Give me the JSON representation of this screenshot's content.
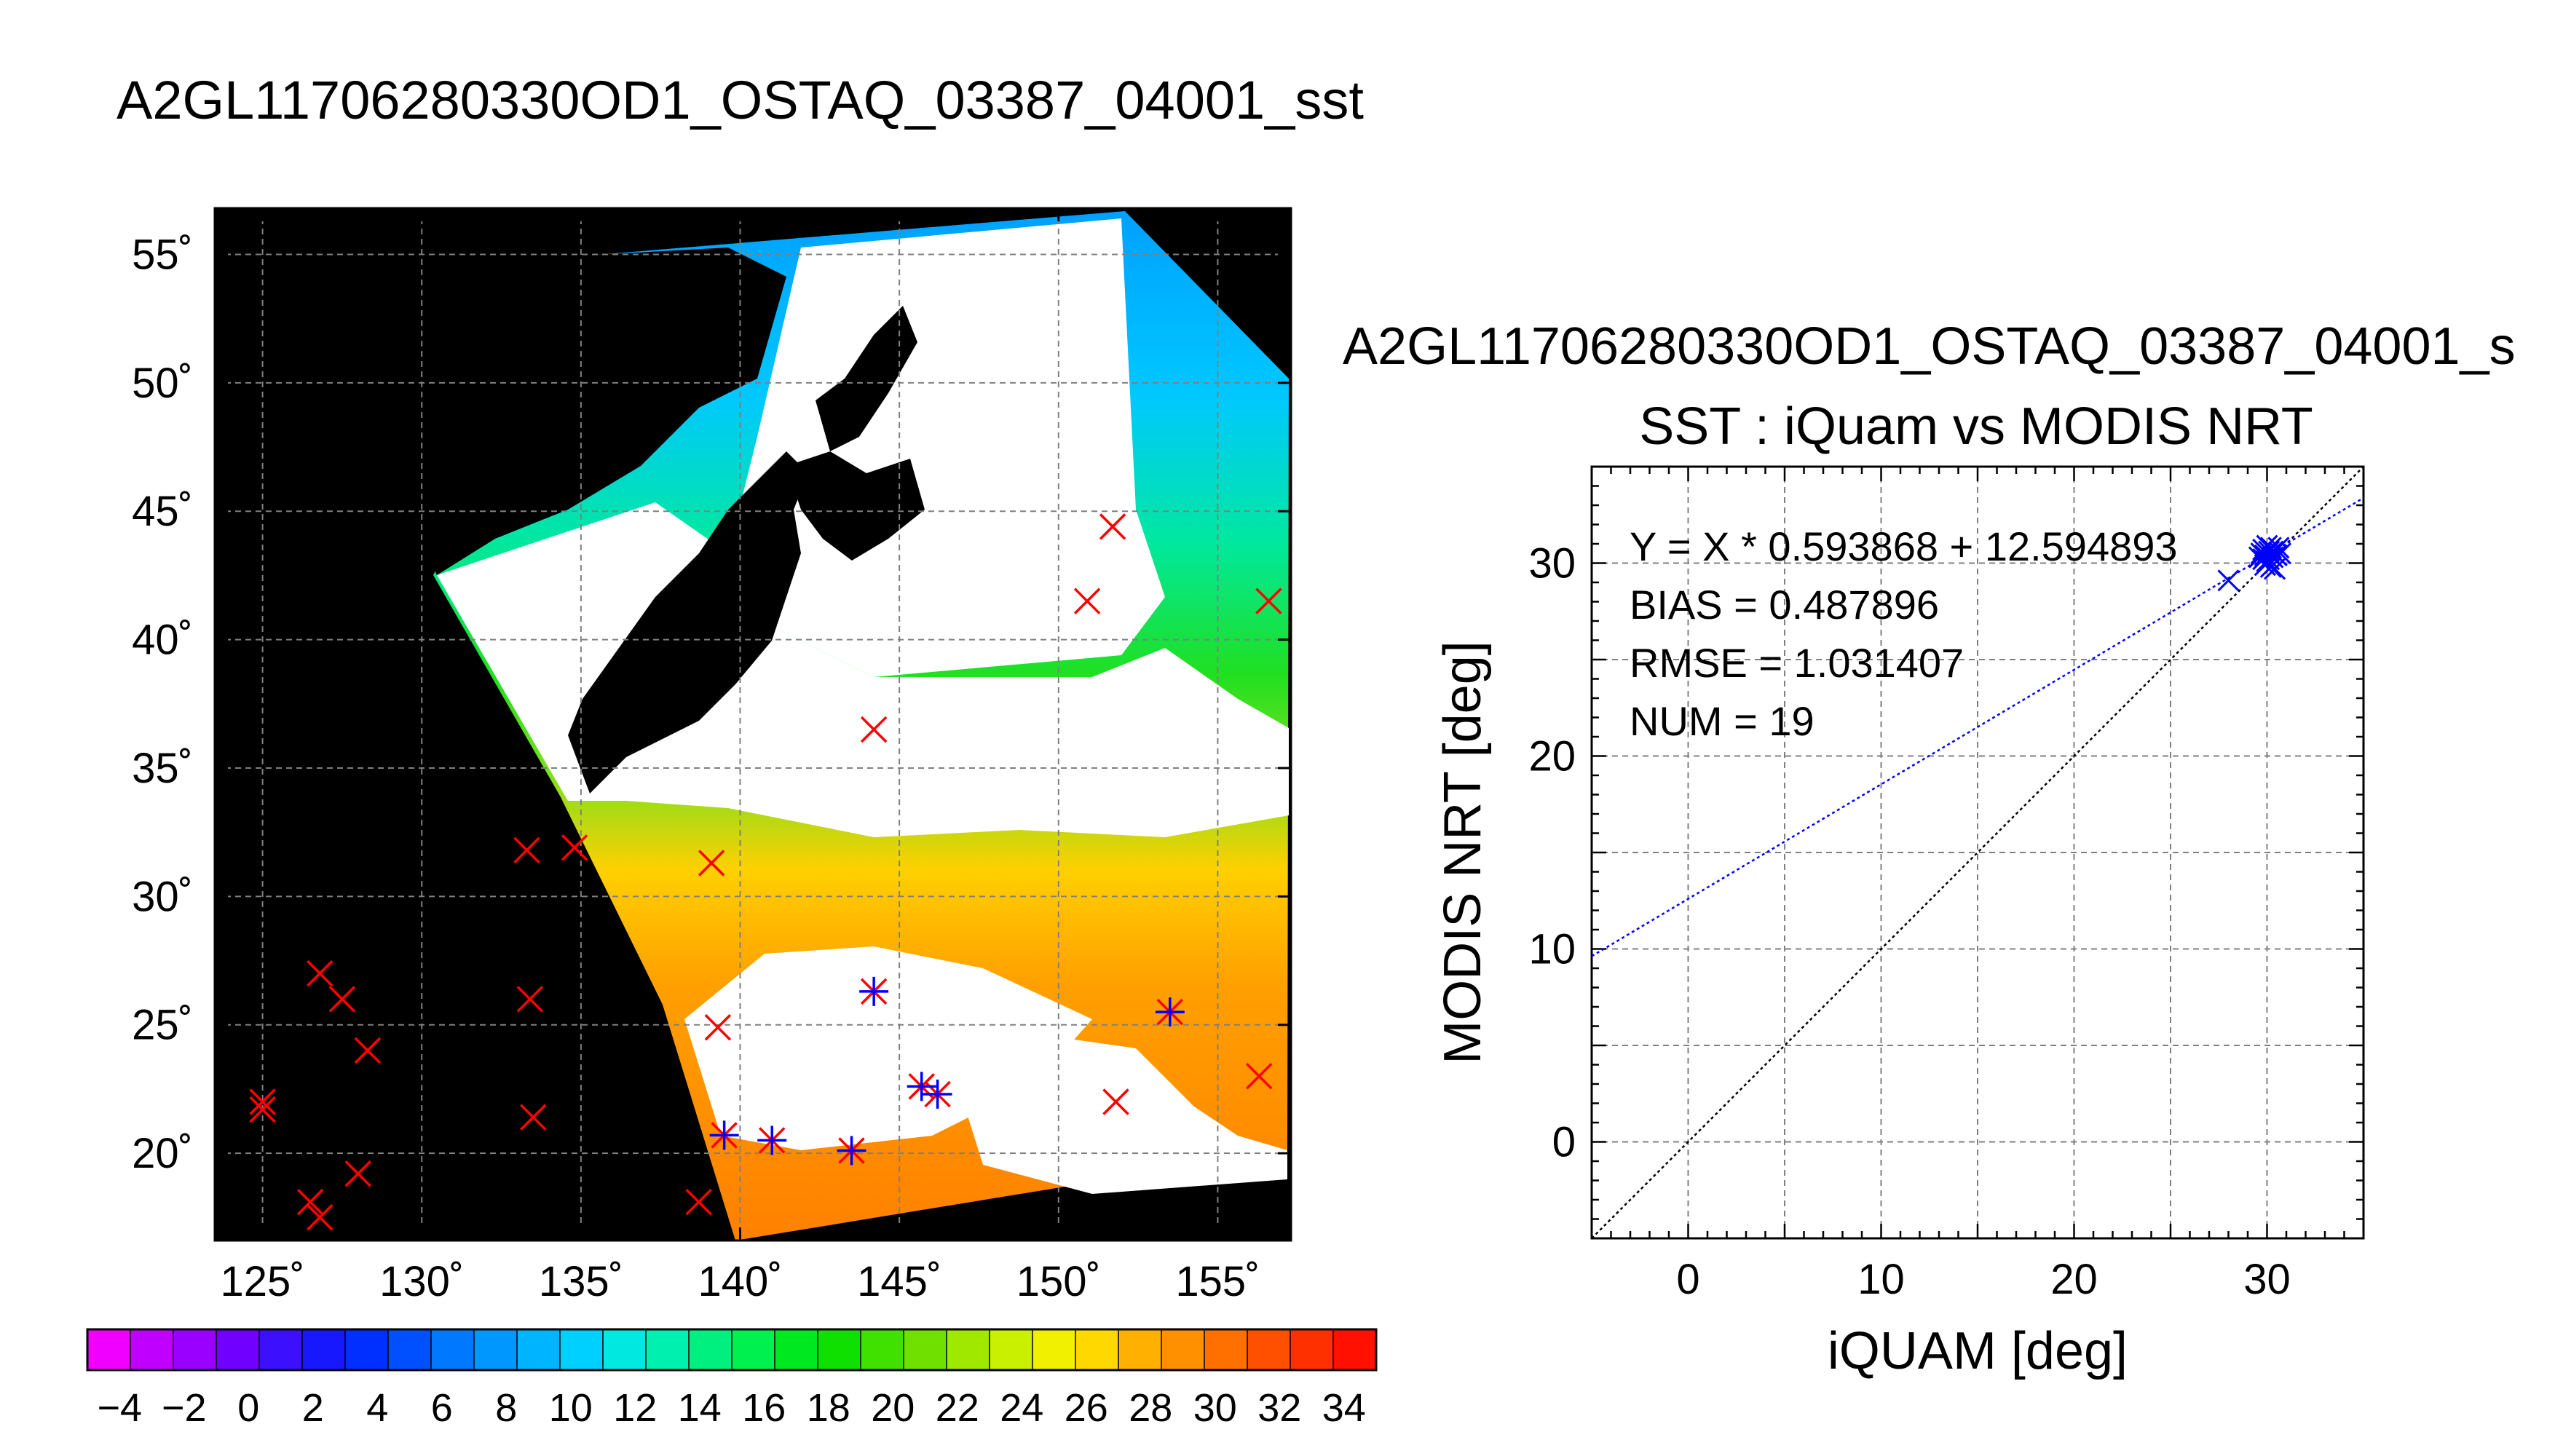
{
  "main_title": "A2GL11706280330OD1_OSTAQ_03387_04001_sst",
  "scatter_window_title": "A2GL11706280330OD1_OSTAQ_03387_04001_s",
  "chart_data": [
    {
      "type": "map",
      "lon_ticks": [
        125,
        130,
        135,
        140,
        145,
        150,
        155
      ],
      "lat_ticks": [
        20,
        25,
        30,
        35,
        40,
        45,
        50,
        55
      ],
      "lon_tick_labels": [
        "125˚",
        "130˚",
        "135˚",
        "140˚",
        "145˚",
        "150˚",
        "155˚"
      ],
      "lat_tick_labels": [
        "20˚",
        "25˚",
        "30˚",
        "35˚",
        "40˚",
        "45˚",
        "50˚",
        "55˚"
      ],
      "lon_range": [
        123.5,
        157.3
      ],
      "lat_range": [
        16.6,
        56.8
      ],
      "grid": true,
      "iquam_points": [
        [
          125.0,
          22.0
        ],
        [
          125.0,
          21.7
        ],
        [
          126.8,
          27.0
        ],
        [
          127.5,
          26.0
        ],
        [
          128.3,
          24.0
        ],
        [
          128.0,
          19.2
        ],
        [
          126.5,
          18.1
        ],
        [
          126.8,
          17.5
        ],
        [
          133.3,
          31.8
        ],
        [
          134.8,
          31.9
        ],
        [
          133.4,
          26.0
        ],
        [
          133.5,
          21.4
        ],
        [
          139.1,
          31.3
        ],
        [
          139.3,
          24.9
        ],
        [
          139.5,
          20.7
        ],
        [
          141.0,
          20.5
        ],
        [
          143.5,
          20.1
        ],
        [
          144.2,
          26.3
        ],
        [
          145.7,
          22.6
        ],
        [
          146.2,
          22.3
        ],
        [
          153.5,
          25.5
        ],
        [
          150.9,
          41.5
        ],
        [
          151.7,
          44.4
        ],
        [
          144.2,
          36.5
        ],
        [
          138.7,
          18.1
        ],
        [
          151.8,
          22.0
        ],
        [
          156.3,
          23.0
        ],
        [
          156.6,
          41.5
        ]
      ],
      "matched_points": [
        [
          139.5,
          20.7
        ],
        [
          141.0,
          20.5
        ],
        [
          143.5,
          20.1
        ],
        [
          144.2,
          26.3
        ],
        [
          145.7,
          22.6
        ],
        [
          146.2,
          22.3
        ],
        [
          153.5,
          25.5
        ]
      ],
      "colors": {
        "iquam": "#ff0000",
        "matched": "#0000ff",
        "land_background": "#000000"
      }
    },
    {
      "type": "scatter",
      "title": "SST : iQuam vs MODIS NRT",
      "xlabel": "iQUAM [deg]",
      "ylabel": "MODIS NRT [deg]",
      "xlim": [
        -5,
        35
      ],
      "ylim": [
        -5,
        35
      ],
      "x_ticks": [
        0,
        10,
        20,
        30
      ],
      "y_ticks": [
        0,
        10,
        20,
        30
      ],
      "grid": true,
      "stats": {
        "fit": "Y = X * 0.593868 + 12.594893",
        "bias": "BIAS = 0.487896",
        "rmse": "RMSE = 1.031407",
        "num": "NUM = 19"
      },
      "fit_line": {
        "slope": 0.593868,
        "intercept": 12.594893,
        "color": "#0000ff"
      },
      "identity_line": {
        "color": "#000000"
      },
      "points": [
        [
          28.0,
          29.1
        ],
        [
          29.6,
          30.3
        ],
        [
          29.8,
          30.7
        ],
        [
          30.0,
          30.9
        ],
        [
          30.1,
          30.2
        ],
        [
          29.9,
          29.9
        ],
        [
          30.3,
          30.6
        ],
        [
          30.5,
          30.4
        ],
        [
          29.7,
          30.5
        ],
        [
          30.2,
          30.8
        ],
        [
          30.6,
          30.8
        ],
        [
          30.4,
          29.7
        ],
        [
          30.0,
          30.1
        ],
        [
          29.8,
          30.2
        ],
        [
          30.3,
          30.3
        ],
        [
          30.1,
          30.6
        ],
        [
          30.7,
          30.5
        ],
        [
          29.9,
          30.4
        ],
        [
          30.2,
          29.8
        ]
      ],
      "point_color": "#0000ff"
    },
    {
      "type": "colorbar",
      "tick_labels": [
        "−4",
        "−2",
        "0",
        "2",
        "4",
        "6",
        "8",
        "10",
        "12",
        "14",
        "16",
        "18",
        "20",
        "22",
        "24",
        "26",
        "28",
        "30",
        "32",
        "34"
      ],
      "range": [
        -5,
        35
      ],
      "colors": [
        "#f000ff",
        "#c000ff",
        "#9a00ff",
        "#7000ff",
        "#3c10ff",
        "#1818ff",
        "#0030ff",
        "#0050ff",
        "#0078ff",
        "#0098ff",
        "#00b4ff",
        "#00d0ff",
        "#00e8e0",
        "#00f0b0",
        "#00f080",
        "#00f050",
        "#00e820",
        "#10e000",
        "#40e000",
        "#70e000",
        "#a0e800",
        "#c8f000",
        "#f0f000",
        "#ffd800",
        "#ffb000",
        "#ff9000",
        "#ff7000",
        "#ff5000",
        "#ff3000",
        "#ff1000"
      ]
    }
  ]
}
